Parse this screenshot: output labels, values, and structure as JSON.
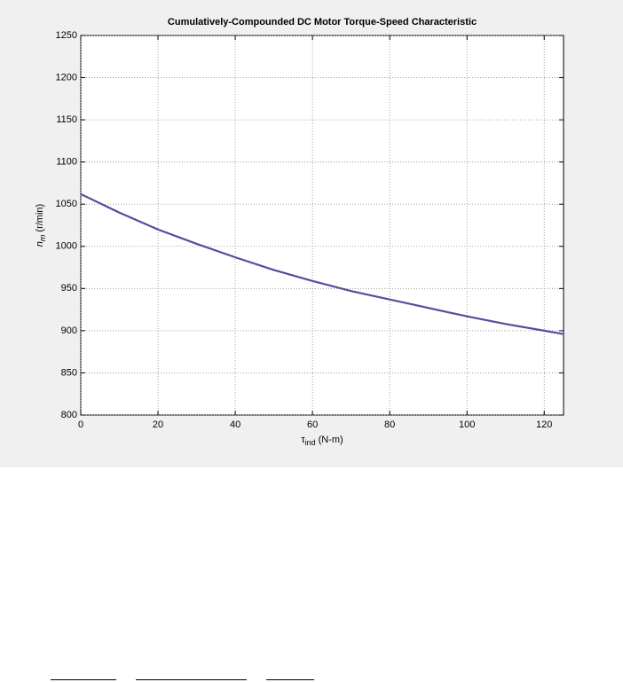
{
  "chart_data": {
    "type": "line",
    "title": "Cumulatively-Compounded DC Motor Torque-Speed Characteristic",
    "xlabel": {
      "symbol": "τ",
      "sub": "ind",
      "unit": "(N-m)"
    },
    "ylabel": {
      "symbol": "n",
      "sub": "m",
      "unit": "(r/min)"
    },
    "x": [
      0,
      10,
      20,
      30,
      40,
      50,
      60,
      70,
      80,
      90,
      100,
      110,
      120,
      125
    ],
    "series": [
      {
        "color": "#5b4a9c",
        "values": [
          1062,
          1040,
          1020,
          1003,
          987,
          972,
          959,
          947,
          937,
          927,
          917,
          908,
          900,
          896
        ]
      }
    ],
    "xlim": [
      0,
      125
    ],
    "xticks": [
      0,
      20,
      40,
      60,
      80,
      100,
      120
    ],
    "ylim": [
      800,
      1250
    ],
    "yticks": [
      800,
      850,
      900,
      950,
      1000,
      1050,
      1100,
      1150,
      1200,
      1250
    ],
    "grid": true
  }
}
